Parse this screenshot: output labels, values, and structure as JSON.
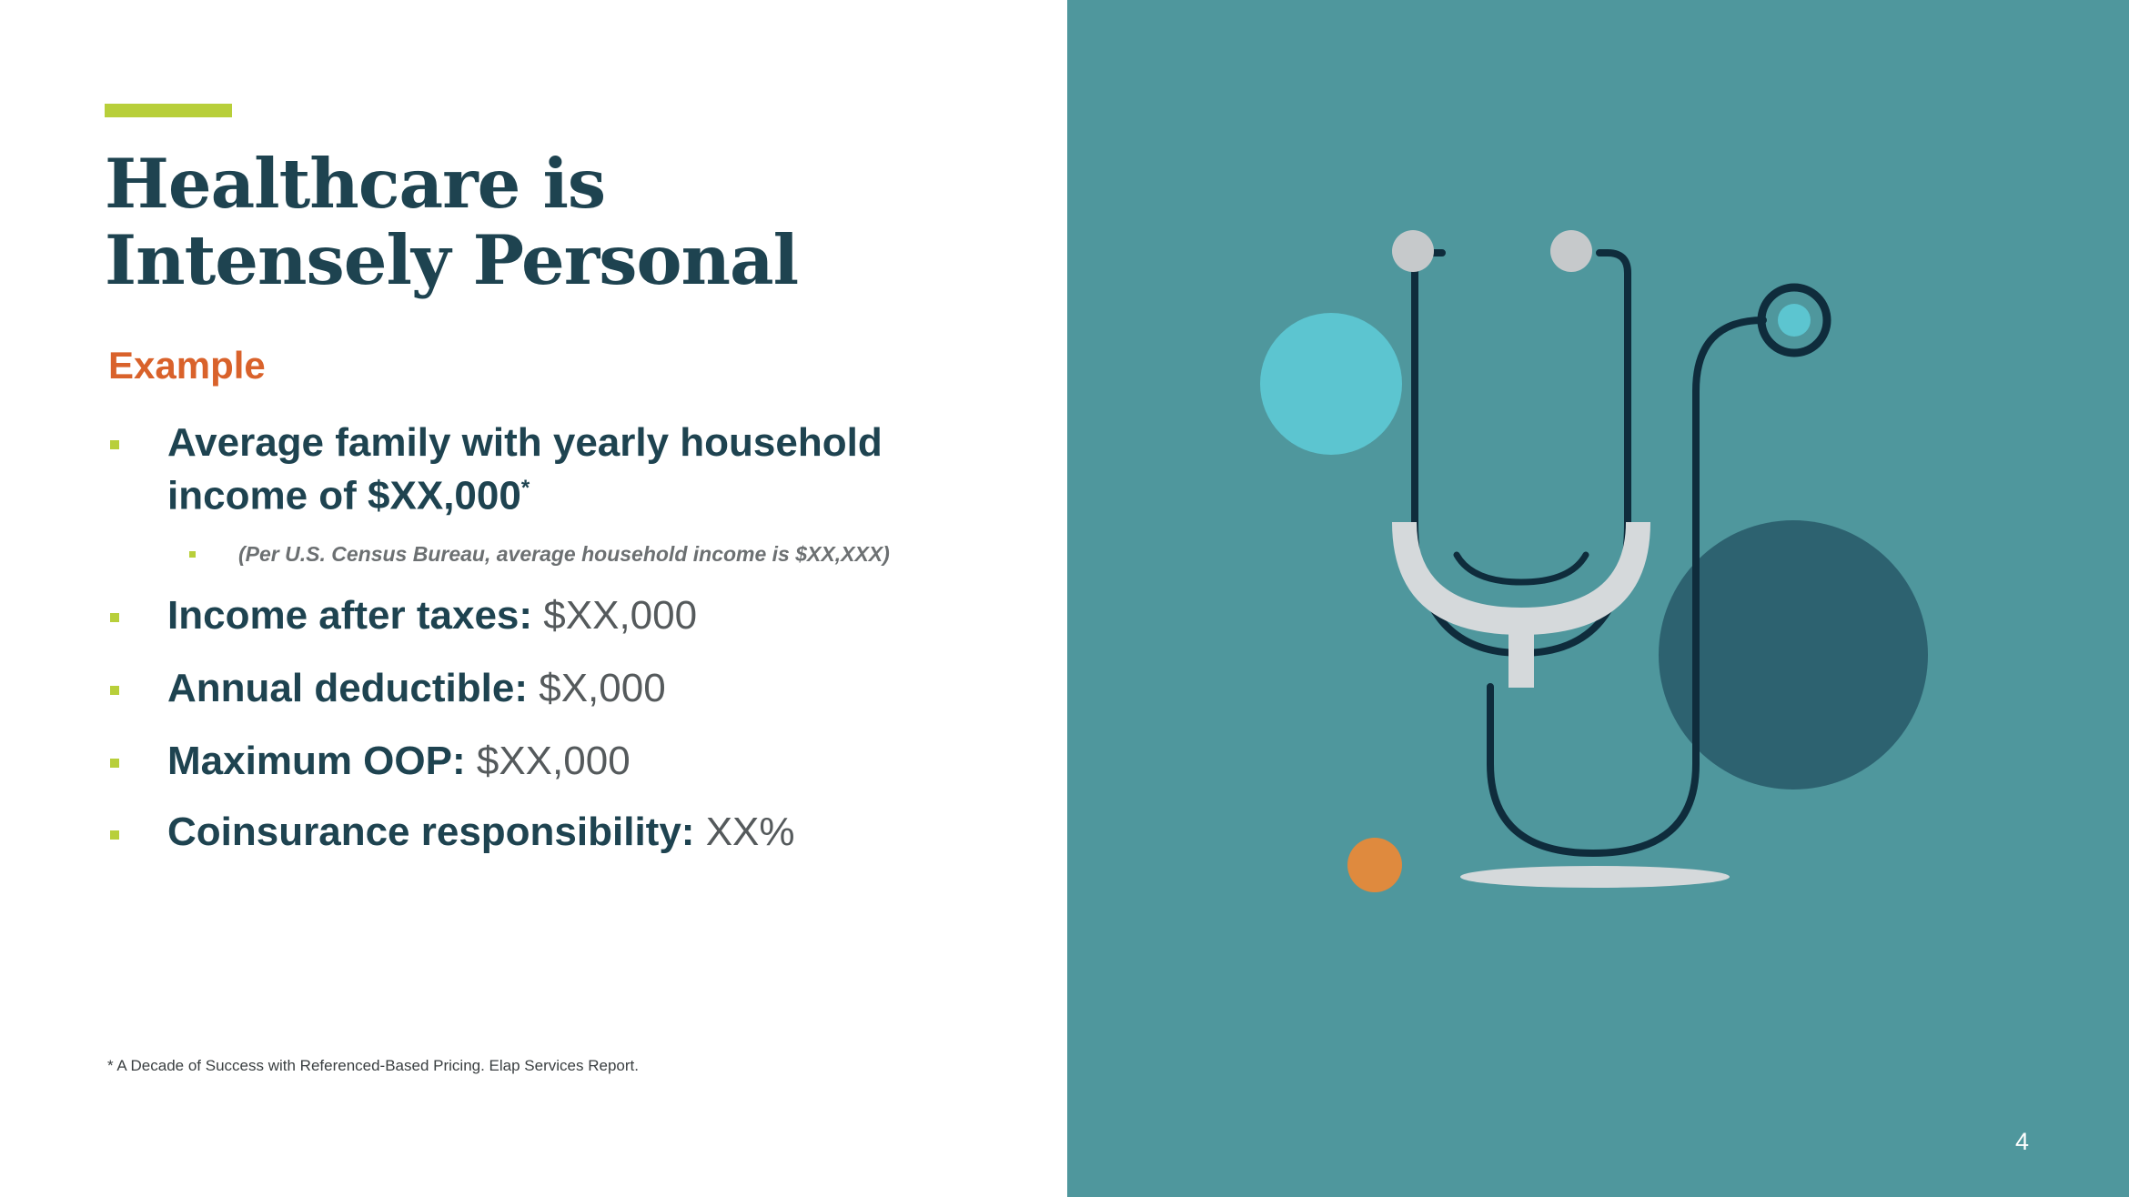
{
  "slide": {
    "title_line1": "Healthcare is",
    "title_line2": "Intensely Personal",
    "subhead": "Example",
    "bullet1": {
      "line1": "Average family with yearly household",
      "line2": "income of $XX,000",
      "superscript": "*"
    },
    "sub_bullet": "(Per U.S. Census Bureau, average household income is $XX,XXX)",
    "bullets": [
      {
        "label": "Income after taxes:",
        "value": " $XX,000"
      },
      {
        "label": "Annual deductible:",
        "value": "$X,000"
      },
      {
        "label": "Maximum OOP:",
        "value": "$XX,000"
      },
      {
        "label": "Coinsurance responsibility:",
        "value": "XX%"
      }
    ],
    "footnote": "* A Decade of Success with Referenced-Based Pricing. Elap Services Report.",
    "page_number": "4"
  },
  "illustration": {
    "icon": "stethoscope-icon",
    "colors": {
      "panel_bg": "#4f979d",
      "tube": "#0f2c3c",
      "light_circle": "#5cc5d0",
      "dark_circle": "#2d6270",
      "orange_dot": "#df8a3e",
      "metal": "#d5d9db",
      "earpiece": "#c6c9cb"
    }
  },
  "colors": {
    "accent": "#b8cf3a",
    "title": "#1e4350",
    "subhead": "#d9622b"
  }
}
